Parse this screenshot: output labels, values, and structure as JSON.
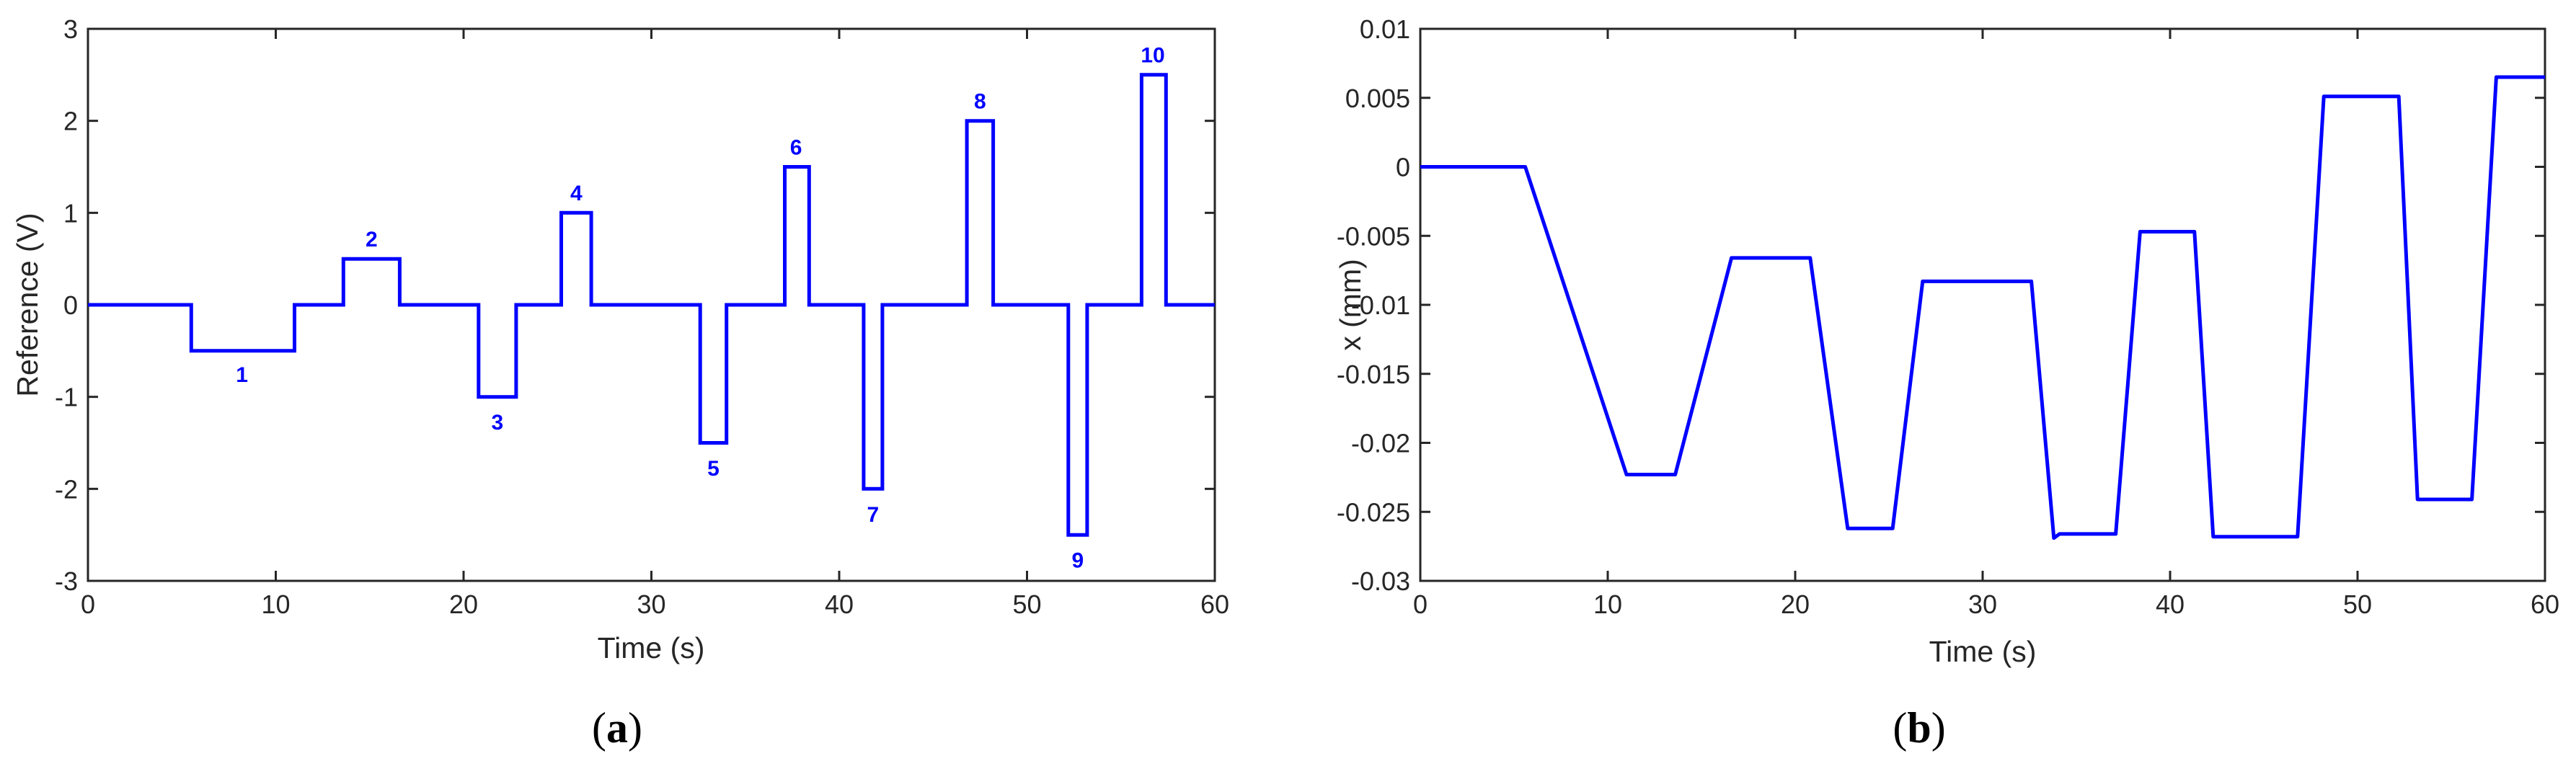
{
  "chart_data": [
    {
      "type": "line",
      "panel_label": "a",
      "xlabel": "Time (s)",
      "ylabel": "Reference (V)",
      "xlim": [
        0,
        60
      ],
      "ylim": [
        -3,
        3
      ],
      "xticks": [
        "0",
        "10",
        "20",
        "30",
        "40",
        "50",
        "60"
      ],
      "yticks": [
        "-3",
        "-2",
        "-1",
        "0",
        "1",
        "2",
        "3"
      ],
      "grid": false,
      "line_color": "#0000ff",
      "series": [
        {
          "x": [
            0,
            5.5,
            5.5,
            11,
            11,
            13.6,
            13.6,
            16.6,
            16.6,
            20.8,
            20.8,
            22.8,
            22.8,
            25.2,
            25.2,
            26.8,
            26.8,
            32.6,
            32.6,
            34,
            34,
            37.1,
            37.1,
            38.4,
            38.4,
            41.3,
            41.3,
            42.3,
            42.3,
            46.8,
            46.8,
            48.2,
            48.2,
            52.2,
            52.2,
            53.2,
            53.2,
            56.1,
            56.1,
            57.4,
            57.4,
            60
          ],
          "y": [
            0,
            0,
            -0.5,
            -0.5,
            0,
            0,
            0.5,
            0.5,
            0,
            0,
            -1,
            -1,
            0,
            0,
            1,
            1,
            0,
            0,
            -1.5,
            -1.5,
            0,
            0,
            1.5,
            1.5,
            0,
            0,
            -2,
            -2,
            0,
            0,
            2,
            2,
            0,
            0,
            -2.5,
            -2.5,
            0,
            0,
            2.5,
            2.5,
            0,
            0
          ]
        }
      ],
      "annotations": [
        {
          "text": "1",
          "x": 8.2,
          "y": -0.75
        },
        {
          "text": "2",
          "x": 15.1,
          "y": 0.72
        },
        {
          "text": "3",
          "x": 21.8,
          "y": -1.27
        },
        {
          "text": "4",
          "x": 26.0,
          "y": 1.22
        },
        {
          "text": "5",
          "x": 33.3,
          "y": -1.77
        },
        {
          "text": "6",
          "x": 37.7,
          "y": 1.72
        },
        {
          "text": "7",
          "x": 41.8,
          "y": -2.27
        },
        {
          "text": "8",
          "x": 47.5,
          "y": 2.22
        },
        {
          "text": "9",
          "x": 52.7,
          "y": -2.77
        },
        {
          "text": "10",
          "x": 56.7,
          "y": 2.72
        }
      ]
    },
    {
      "type": "line",
      "panel_label": "b",
      "xlabel": "Time (s)",
      "ylabel": "x (mm)",
      "xlim": [
        0,
        60
      ],
      "ylim": [
        -0.03,
        0.01
      ],
      "xticks": [
        "0",
        "10",
        "20",
        "30",
        "40",
        "50",
        "60"
      ],
      "yticks": [
        "-0.03",
        "-0.025",
        "-0.02",
        "-0.015",
        "-0.01",
        "-0.005",
        "0",
        "0.005",
        "0.01"
      ],
      "grid": false,
      "line_color": "#0000ff",
      "series": [
        {
          "x": [
            0,
            5.6,
            11,
            13.6,
            16.6,
            20.8,
            22.8,
            25.2,
            26.8,
            32.6,
            33.8,
            34.1,
            37.1,
            38.4,
            41.3,
            42.3,
            46.8,
            48.2,
            52.2,
            53.2,
            56.1,
            57.4,
            60
          ],
          "y": [
            0,
            0,
            -0.0223,
            -0.0223,
            -0.0066,
            -0.0066,
            -0.0262,
            -0.0262,
            -0.0083,
            -0.0083,
            -0.0269,
            -0.0266,
            -0.0266,
            -0.0047,
            -0.0047,
            -0.0268,
            -0.0268,
            0.0051,
            0.0051,
            -0.0241,
            -0.0241,
            0.0065,
            0.0065
          ]
        }
      ]
    }
  ]
}
